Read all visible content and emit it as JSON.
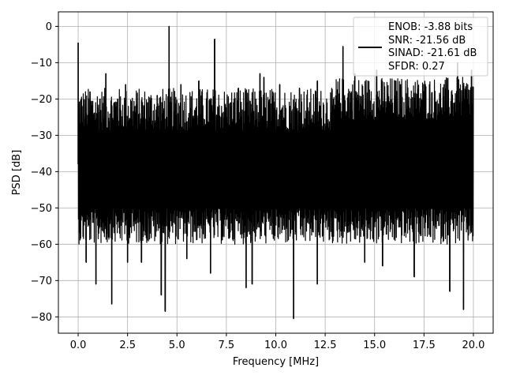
{
  "chart_data": {
    "type": "line",
    "xlabel": "Frequency [MHz]",
    "ylabel": "PSD [dB]",
    "xlim": [
      -1.0,
      21.0
    ],
    "ylim": [
      -84.5,
      4.0
    ],
    "xticks": [
      0.0,
      2.5,
      5.0,
      7.5,
      10.0,
      12.5,
      15.0,
      17.5,
      20.0
    ],
    "xtick_labels": [
      "0.0",
      "2.5",
      "5.0",
      "7.5",
      "10.0",
      "12.5",
      "15.0",
      "17.5",
      "20.0"
    ],
    "yticks": [
      0,
      -10,
      -20,
      -30,
      -40,
      -50,
      -60,
      -70,
      -80
    ],
    "ytick_labels": [
      "0",
      "−10",
      "−20",
      "−30",
      "−40",
      "−50",
      "−60",
      "−70",
      "−80"
    ],
    "grid": true,
    "legend_placement": "upper-right",
    "legend_lines": [
      "ENOB: -3.88 bits",
      "SNR: -21.56 dB",
      "SINAD: -21.61 dB",
      "SFDR: 0.27"
    ],
    "series_color": "#000000",
    "noise_floor_db": -38,
    "spur_peaks": [
      {
        "x": 0.0,
        "y": -4.5
      },
      {
        "x": 0.6,
        "y": -18
      },
      {
        "x": 1.1,
        "y": -20
      },
      {
        "x": 1.4,
        "y": -13
      },
      {
        "x": 2.0,
        "y": -20
      },
      {
        "x": 2.4,
        "y": -16
      },
      {
        "x": 3.5,
        "y": -21
      },
      {
        "x": 4.0,
        "y": -19
      },
      {
        "x": 4.6,
        "y": 0.0
      },
      {
        "x": 5.2,
        "y": -16
      },
      {
        "x": 6.1,
        "y": -15
      },
      {
        "x": 6.9,
        "y": -3.5
      },
      {
        "x": 7.7,
        "y": -21
      },
      {
        "x": 8.1,
        "y": -17
      },
      {
        "x": 9.2,
        "y": -13
      },
      {
        "x": 9.4,
        "y": -14
      },
      {
        "x": 10.2,
        "y": -16
      },
      {
        "x": 11.2,
        "y": -17
      },
      {
        "x": 12.1,
        "y": -15
      },
      {
        "x": 13.4,
        "y": -5.5
      },
      {
        "x": 14.0,
        "y": -13
      },
      {
        "x": 15.1,
        "y": -12
      },
      {
        "x": 16.3,
        "y": -16
      },
      {
        "x": 17.5,
        "y": -18
      },
      {
        "x": 18.3,
        "y": -19
      },
      {
        "x": 19.2,
        "y": -10
      },
      {
        "x": 19.9,
        "y": -12
      }
    ],
    "dip_valleys": [
      {
        "x": 0.4,
        "y": -65
      },
      {
        "x": 0.9,
        "y": -71
      },
      {
        "x": 1.7,
        "y": -76.5
      },
      {
        "x": 2.5,
        "y": -65
      },
      {
        "x": 3.2,
        "y": -65
      },
      {
        "x": 4.2,
        "y": -74
      },
      {
        "x": 4.4,
        "y": -78.5
      },
      {
        "x": 5.5,
        "y": -64
      },
      {
        "x": 6.7,
        "y": -68
      },
      {
        "x": 8.5,
        "y": -72
      },
      {
        "x": 8.8,
        "y": -71
      },
      {
        "x": 10.9,
        "y": -80.5
      },
      {
        "x": 12.1,
        "y": -71
      },
      {
        "x": 14.5,
        "y": -65
      },
      {
        "x": 15.4,
        "y": -66
      },
      {
        "x": 17.0,
        "y": -69
      },
      {
        "x": 18.8,
        "y": -73
      },
      {
        "x": 19.5,
        "y": -78
      }
    ]
  }
}
